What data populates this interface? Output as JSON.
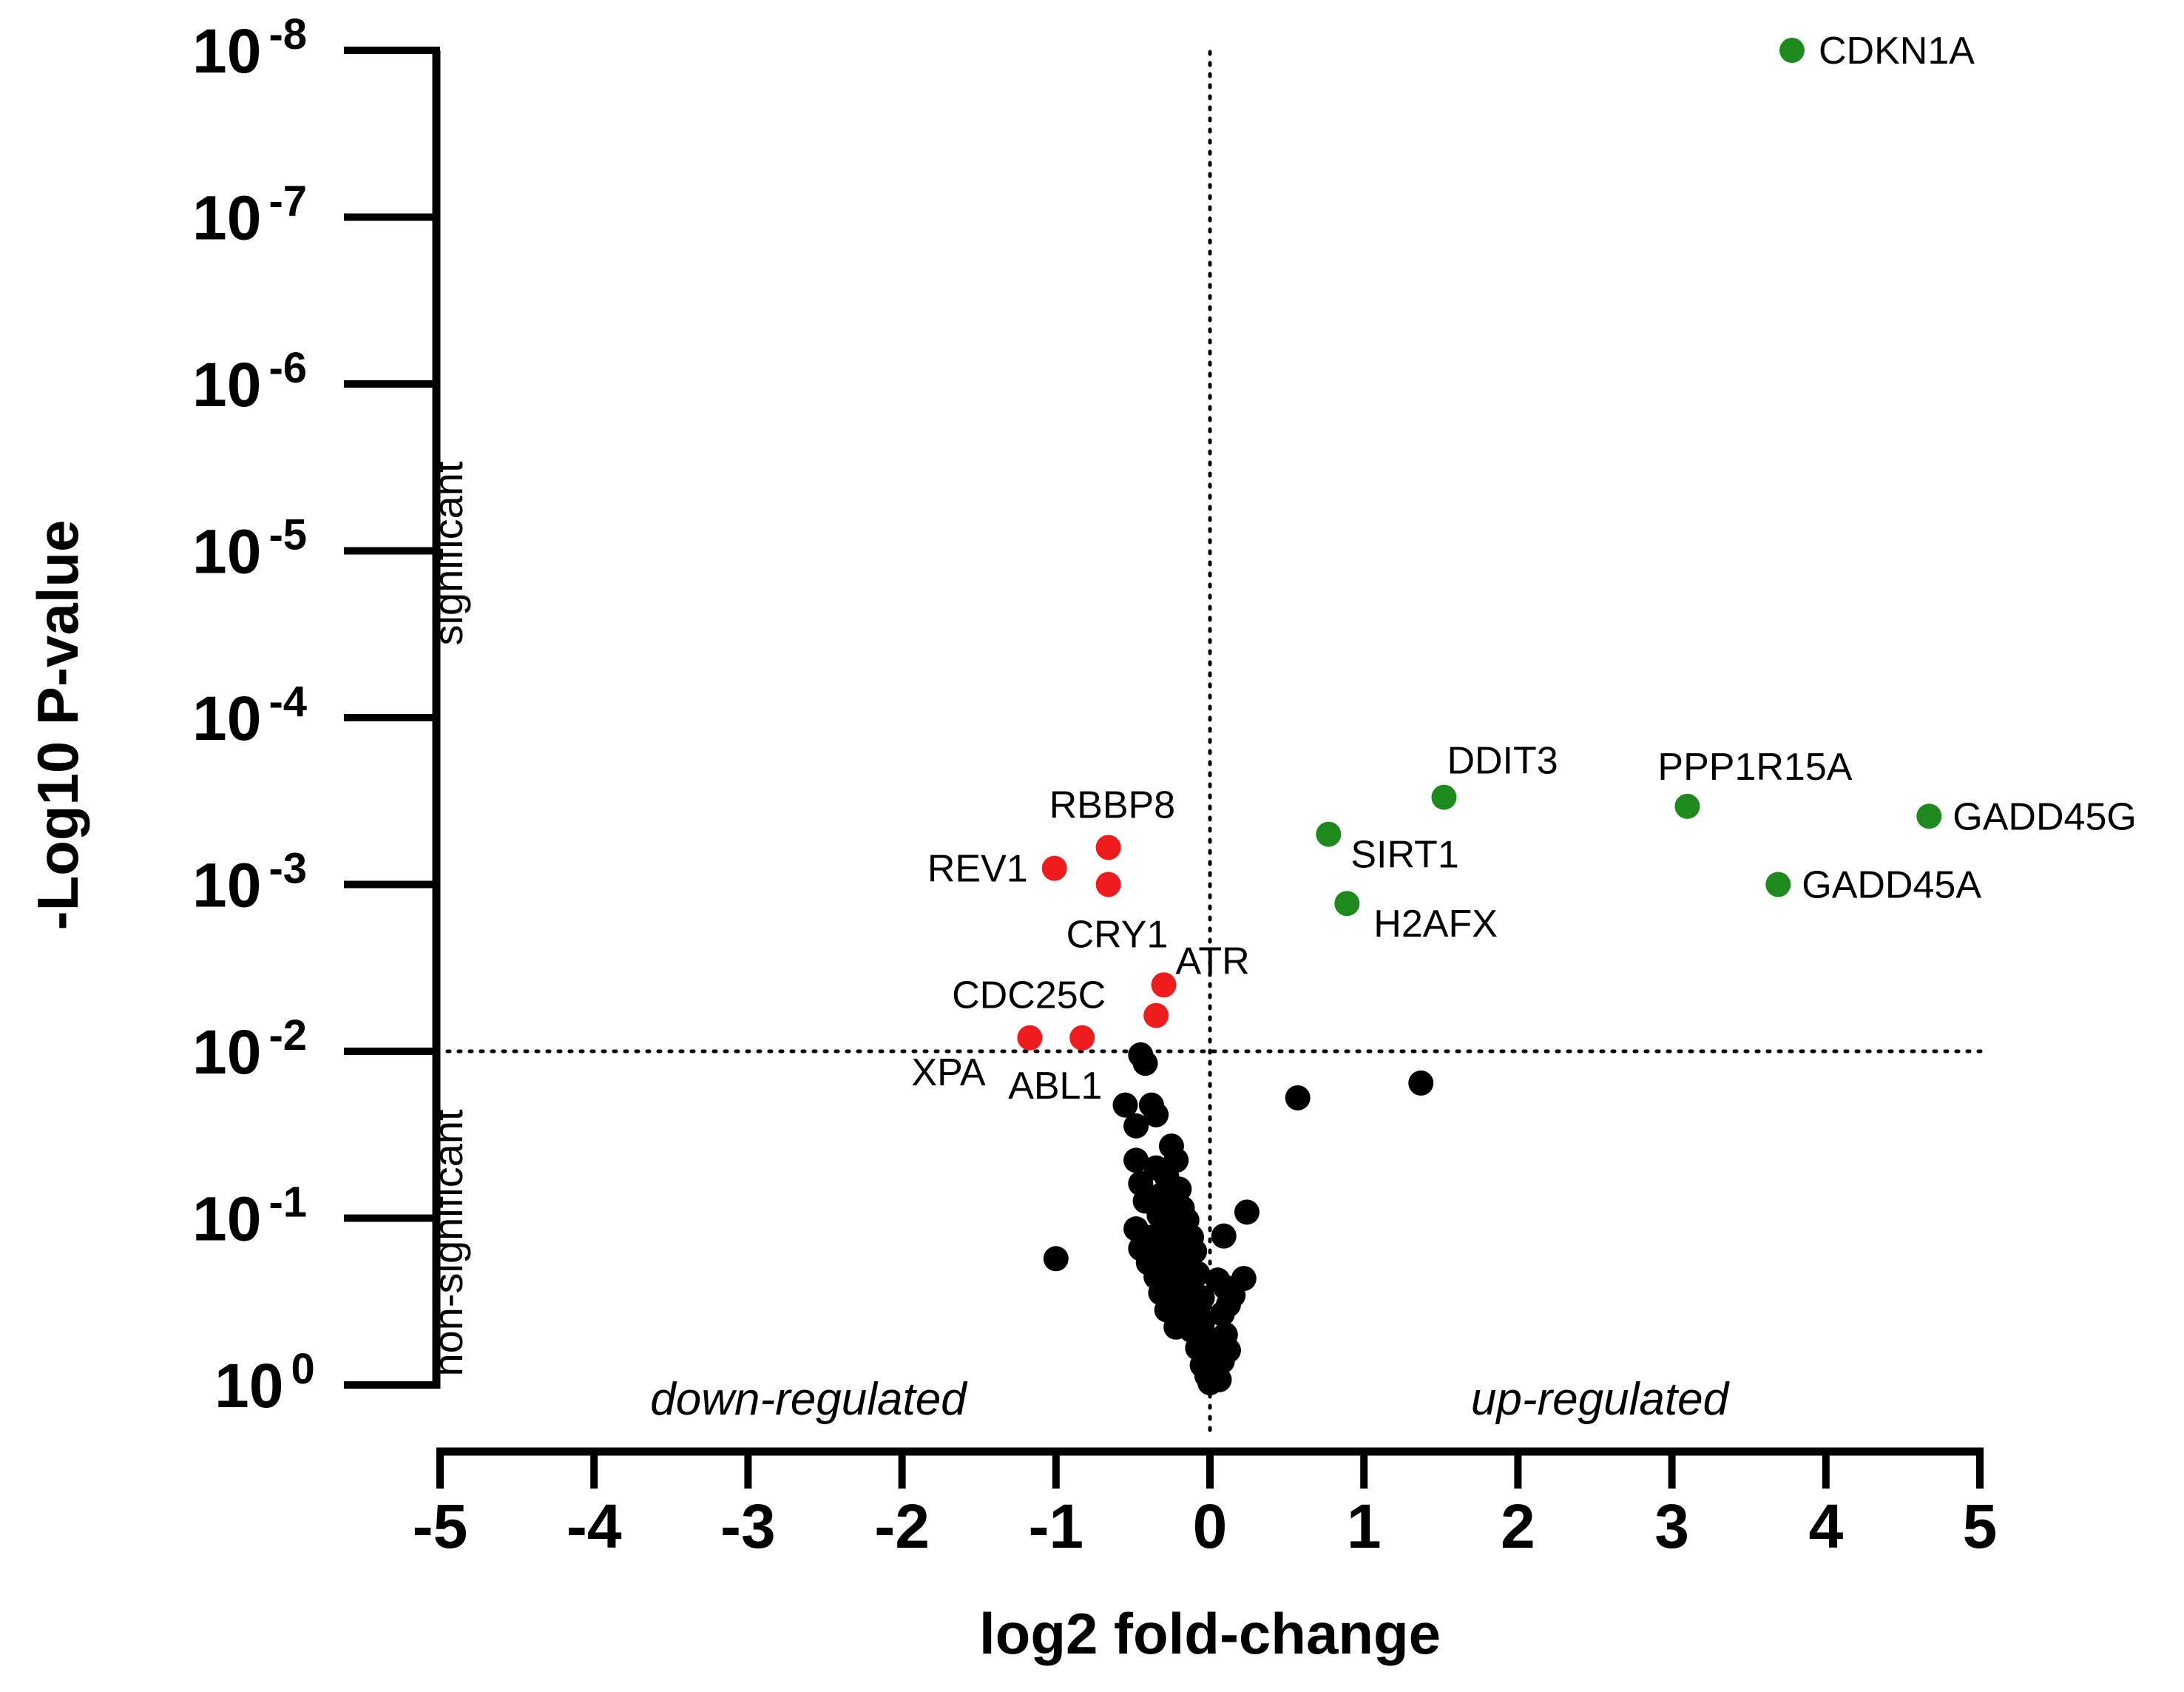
{
  "chart_data": {
    "type": "scatter",
    "xlabel": "log2 fold-change",
    "ylabel": "-Log10 P-value",
    "xlim": [
      -5,
      5
    ],
    "x_ticks": [
      "-5",
      "-4",
      "-3",
      "-2",
      "-1",
      "0",
      "1",
      "2",
      "3",
      "4",
      "5"
    ],
    "y_scale": "log",
    "ylim": [
      1,
      1e-08
    ],
    "y_ticks": [
      {
        "value": 1,
        "base": "10",
        "exp": "0"
      },
      {
        "value": 0.1,
        "base": "10",
        "exp": "-1"
      },
      {
        "value": 0.01,
        "base": "10",
        "exp": "-2"
      },
      {
        "value": 0.001,
        "base": "10",
        "exp": "-3"
      },
      {
        "value": 0.0001,
        "base": "10",
        "exp": "-4"
      },
      {
        "value": 1e-05,
        "base": "10",
        "exp": "-5"
      },
      {
        "value": 1e-06,
        "base": "10",
        "exp": "-6"
      },
      {
        "value": 1e-07,
        "base": "10",
        "exp": "-7"
      },
      {
        "value": 1e-08,
        "base": "10",
        "exp": "-8"
      }
    ],
    "threshold_p": 0.01,
    "threshold_fc": 0,
    "region_labels": {
      "significant": "significant",
      "non_significant": "non-significant",
      "down": "down-regulated",
      "up": "up-regulated"
    },
    "colors": {
      "up": "#1e8a1e",
      "down": "#ee1c1c",
      "ns": "#000000"
    },
    "up_regulated": [
      {
        "gene": "CDKN1A",
        "x": 3.78,
        "p": 1e-08
      },
      {
        "gene": "DDIT3",
        "x": 1.52,
        "p": 0.0003
      },
      {
        "gene": "PPP1R15A",
        "x": 3.1,
        "p": 0.00034
      },
      {
        "gene": "GADD45G",
        "x": 4.67,
        "p": 0.00039
      },
      {
        "gene": "SIRT1",
        "x": 0.77,
        "p": 0.0005
      },
      {
        "gene": "GADD45A",
        "x": 3.69,
        "p": 0.001
      },
      {
        "gene": "H2AFX",
        "x": 0.89,
        "p": 0.0013
      }
    ],
    "down_regulated": [
      {
        "gene": "RBBP8",
        "x": -0.66,
        "p": 0.0006
      },
      {
        "gene": "REV1",
        "x": -1.01,
        "p": 0.0008
      },
      {
        "gene": "CRY1",
        "x": -0.66,
        "p": 0.001
      },
      {
        "gene": "ATR",
        "x": -0.3,
        "p": 0.004
      },
      {
        "gene": "CDC25C",
        "x": -0.35,
        "p": 0.0061
      },
      {
        "gene": "XPA",
        "x": -1.17,
        "p": 0.0083
      },
      {
        "gene": "ABL1",
        "x": -0.83,
        "p": 0.0083
      }
    ],
    "non_significant": [
      {
        "x": 1.37,
        "p": 0.0155
      },
      {
        "x": 0.57,
        "p": 0.019
      },
      {
        "x": -1.0,
        "p": 0.175
      },
      {
        "x": -0.45,
        "p": 0.0105
      },
      {
        "x": -0.42,
        "p": 0.0118
      },
      {
        "x": -0.55,
        "p": 0.021
      },
      {
        "x": -0.38,
        "p": 0.021
      },
      {
        "x": -0.35,
        "p": 0.024
      },
      {
        "x": -0.48,
        "p": 0.028
      },
      {
        "x": -0.25,
        "p": 0.037
      },
      {
        "x": -0.48,
        "p": 0.045
      },
      {
        "x": -0.22,
        "p": 0.045
      },
      {
        "x": -0.35,
        "p": 0.05
      },
      {
        "x": -0.28,
        "p": 0.057
      },
      {
        "x": -0.45,
        "p": 0.062
      },
      {
        "x": -0.2,
        "p": 0.067
      },
      {
        "x": -0.32,
        "p": 0.073
      },
      {
        "x": -0.42,
        "p": 0.079
      },
      {
        "x": -0.25,
        "p": 0.082
      },
      {
        "x": -0.18,
        "p": 0.087
      },
      {
        "x": 0.24,
        "p": 0.092
      },
      {
        "x": -0.33,
        "p": 0.096
      },
      {
        "x": -0.15,
        "p": 0.103
      },
      {
        "x": -0.48,
        "p": 0.116
      },
      {
        "x": -0.28,
        "p": 0.112
      },
      {
        "x": -0.22,
        "p": 0.118
      },
      {
        "x": 0.09,
        "p": 0.128
      },
      {
        "x": -0.38,
        "p": 0.13
      },
      {
        "x": -0.12,
        "p": 0.13
      },
      {
        "x": -0.3,
        "p": 0.14
      },
      {
        "x": -0.45,
        "p": 0.152
      },
      {
        "x": -0.18,
        "p": 0.148
      },
      {
        "x": -0.1,
        "p": 0.158
      },
      {
        "x": -0.35,
        "p": 0.168
      },
      {
        "x": -0.25,
        "p": 0.172
      },
      {
        "x": -0.4,
        "p": 0.185
      },
      {
        "x": -0.15,
        "p": 0.19
      },
      {
        "x": -0.3,
        "p": 0.21
      },
      {
        "x": -0.2,
        "p": 0.205
      },
      {
        "x": -0.08,
        "p": 0.215
      },
      {
        "x": -0.35,
        "p": 0.225
      },
      {
        "x": 0.05,
        "p": 0.235
      },
      {
        "x": 0.22,
        "p": 0.23
      },
      {
        "x": -0.25,
        "p": 0.25
      },
      {
        "x": -0.12,
        "p": 0.255
      },
      {
        "x": 0.1,
        "p": 0.26
      },
      {
        "x": -0.18,
        "p": 0.275
      },
      {
        "x": -0.32,
        "p": 0.28
      },
      {
        "x": 0.15,
        "p": 0.29
      },
      {
        "x": -0.05,
        "p": 0.3
      },
      {
        "x": -0.22,
        "p": 0.32
      },
      {
        "x": 0.12,
        "p": 0.33
      },
      {
        "x": -0.15,
        "p": 0.345
      },
      {
        "x": -0.28,
        "p": 0.355
      },
      {
        "x": -0.08,
        "p": 0.37
      },
      {
        "x": 0.08,
        "p": 0.375
      },
      {
        "x": -0.2,
        "p": 0.39
      },
      {
        "x": -0.05,
        "p": 0.43
      },
      {
        "x": -0.22,
        "p": 0.45
      },
      {
        "x": -0.12,
        "p": 0.47
      },
      {
        "x": 0.1,
        "p": 0.5
      },
      {
        "x": -0.02,
        "p": 0.52
      },
      {
        "x": 0.05,
        "p": 0.56
      },
      {
        "x": -0.08,
        "p": 0.6
      },
      {
        "x": 0.12,
        "p": 0.62
      },
      {
        "x": 0.02,
        "p": 0.68
      },
      {
        "x": 0.08,
        "p": 0.72
      },
      {
        "x": -0.05,
        "p": 0.76
      },
      {
        "x": 0.04,
        "p": 0.82
      },
      {
        "x": -0.02,
        "p": 0.88
      },
      {
        "x": 0.06,
        "p": 0.93
      },
      {
        "x": 0.0,
        "p": 0.97
      }
    ]
  }
}
